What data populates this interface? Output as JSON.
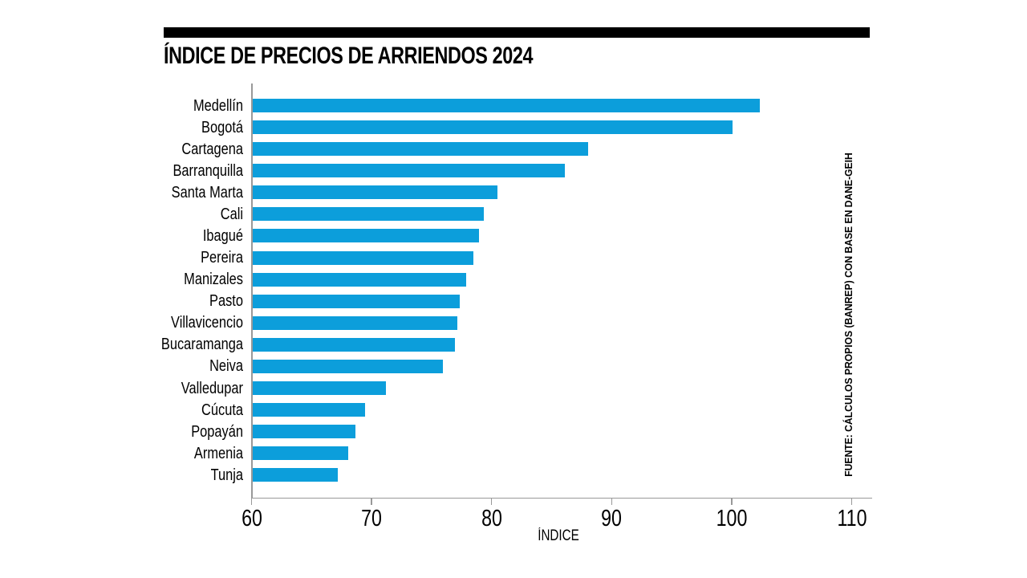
{
  "header": {
    "title": "ÍNDICE DE PRECIOS DE ARRIENDOS 2024"
  },
  "source_note": "FUENTE: CÁLCULOS PROPIOS (BANREP) CON BASE EN DANE-GEIH",
  "chart_data": {
    "type": "bar",
    "orientation": "horizontal",
    "title": "ÍNDICE DE PRECIOS DE ARRIENDOS 2024",
    "xlabel": "ÍNDICE",
    "ylabel": "",
    "categories": [
      "Medellín",
      "Bogotá",
      "Cartagena",
      "Barranquilla",
      "Santa Marta",
      "Cali",
      "Ibagué",
      "Pereira",
      "Manizales",
      "Pasto",
      "Villavicencio",
      "Bucaramanga",
      "Neiva",
      "Valledupar",
      "Cúcuta",
      "Popayán",
      "Armenia",
      "Tunja"
    ],
    "values": [
      102.3,
      100.0,
      88.0,
      86.0,
      80.4,
      79.3,
      78.9,
      78.4,
      77.8,
      77.3,
      77.1,
      76.9,
      75.9,
      71.1,
      69.4,
      68.6,
      68.0,
      67.1
    ],
    "xlim": [
      60,
      110
    ],
    "x_ticks": [
      60,
      70,
      80,
      90,
      100,
      110
    ],
    "grid": false,
    "legend": "none",
    "colors": {
      "bar": "#0c9edb",
      "axis": "#999999",
      "text": "#000000"
    }
  }
}
